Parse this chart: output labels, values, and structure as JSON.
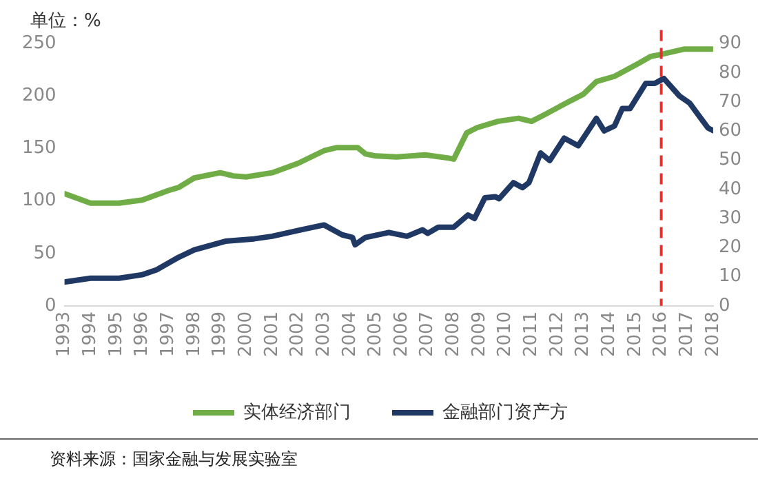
{
  "chart_data": {
    "type": "line",
    "ylabel": "单位：%",
    "xlim": [
      1993,
      2018
    ],
    "xticks": [
      1993,
      1994,
      1995,
      1996,
      1997,
      1998,
      1999,
      2000,
      2001,
      2002,
      2003,
      2004,
      2005,
      2006,
      2007,
      2008,
      2009,
      2010,
      2011,
      2012,
      2013,
      2014,
      2015,
      2016,
      2017,
      2018
    ],
    "ylim": [
      0,
      250
    ],
    "yticks": [
      0,
      50,
      100,
      150,
      200,
      250
    ],
    "y2lim": [
      0,
      90
    ],
    "y2ticks": [
      0,
      10,
      20,
      30,
      40,
      50,
      60,
      70,
      80,
      90
    ],
    "series": [
      {
        "name": "实体经济部门",
        "color": "#70ad47",
        "x": [
          1993,
          1994,
          1995.1,
          1996,
          1997,
          1997.4,
          1998,
          1999,
          1999.5,
          2000,
          2001,
          2002,
          2003,
          2003.5,
          2004.3,
          2004.6,
          2005,
          2005.8,
          2006.9,
          2007.8,
          2008,
          2008.5,
          2008.9,
          2009.7,
          2010.5,
          2011,
          2011.55,
          2012.3,
          2013,
          2013.5,
          2014.2,
          2015.1,
          2015.6,
          2016,
          2016.9,
          2018
        ],
        "values": [
          107,
          98,
          98,
          101,
          110,
          113,
          122,
          127,
          124,
          123,
          127,
          136,
          148,
          151,
          151,
          145,
          143,
          142,
          144,
          141,
          140,
          165,
          170,
          176,
          179,
          176,
          183,
          193,
          202,
          214,
          219,
          231,
          238,
          240,
          245,
          245
        ]
      },
      {
        "name": "金融部门资产方",
        "color": "#203864",
        "axis": "y2",
        "x": [
          1993,
          1994,
          1995.1,
          1996,
          1996.55,
          1997.4,
          1998,
          1999.2,
          2000.3,
          2001,
          2002.1,
          2003,
          2003.7,
          2004.1,
          2004.2,
          2004.6,
          2005.5,
          2006.2,
          2006.8,
          2007,
          2007.4,
          2008,
          2008.55,
          2008.8,
          2009.2,
          2009.6,
          2009.75,
          2010.3,
          2010.65,
          2010.9,
          2011.35,
          2011.7,
          2012.26,
          2012.8,
          2013.5,
          2013.8,
          2014.2,
          2014.5,
          2014.8,
          2015.4,
          2015.75,
          2016.1,
          2016.7,
          2017.1,
          2017.8,
          2018
        ],
        "values": [
          8.2,
          9.5,
          9.5,
          10.7,
          12.4,
          16.7,
          19.2,
          22.2,
          23,
          23.9,
          26.1,
          27.8,
          24.4,
          23.5,
          21,
          23.5,
          25.2,
          23.9,
          26.1,
          24.9,
          27,
          27,
          31.2,
          30,
          37.1,
          37.5,
          36.8,
          42.3,
          40.6,
          42.3,
          52.5,
          49.9,
          57.6,
          55,
          64.4,
          60.1,
          61.8,
          67.8,
          67.8,
          76.4,
          76.4,
          78.1,
          72.1,
          69.6,
          61.1,
          60.2
        ]
      }
    ],
    "ref_lines": [
      {
        "axis": "x",
        "value": 2016,
        "color": "#e03030",
        "line_style": "dashed"
      }
    ],
    "legend": "bottom",
    "grid": false,
    "annotations": [
      "资料来源：国家金融与发展实验室"
    ]
  }
}
